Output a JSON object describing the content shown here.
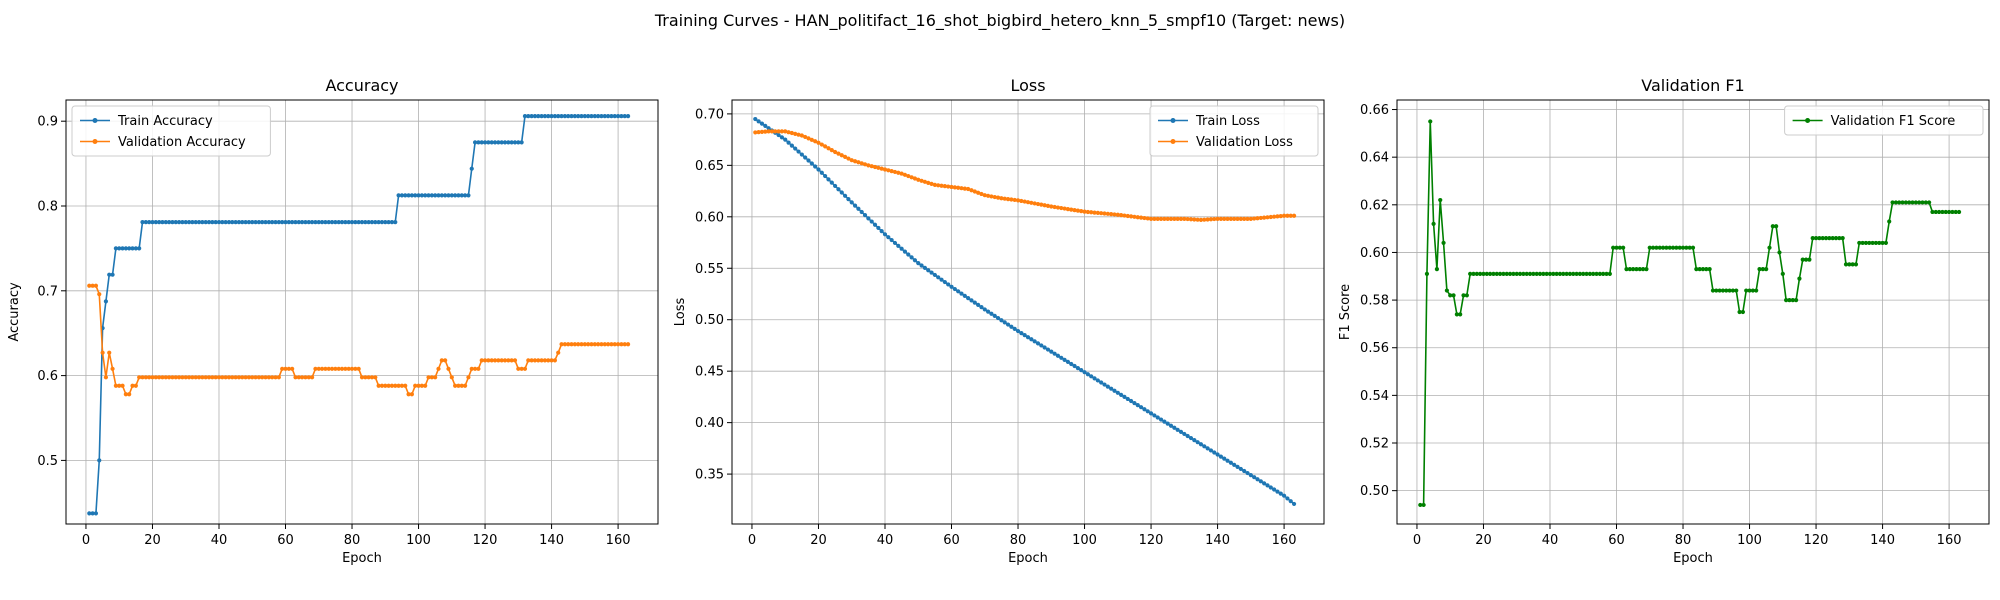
{
  "figure": {
    "title": "Training Curves - HAN_politifact_16_shot_bigbird_hetero_knn_5_smpf10 (Target: news)"
  },
  "colors": {
    "blue": "#1f77b4",
    "orange": "#ff7f0e",
    "green": "#008000",
    "grid": "#b0b0b0"
  },
  "chart_data": [
    {
      "type": "line",
      "title": "Accuracy",
      "xlabel": "Epoch",
      "ylabel": "Accuracy",
      "xlim": [
        -6,
        172
      ],
      "ylim": [
        0.425,
        0.925
      ],
      "xticks": [
        0,
        20,
        40,
        60,
        80,
        100,
        120,
        140,
        160
      ],
      "yticks": [
        0.5,
        0.6,
        0.7,
        0.8,
        0.9
      ],
      "ytick_labels": [
        "0.5",
        "0.6",
        "0.7",
        "0.8",
        "0.9"
      ],
      "grid": true,
      "legend": "upper-left",
      "series": [
        {
          "name": "Train Accuracy",
          "color_key": "blue",
          "keypoints": [
            [
              1,
              0.4375
            ],
            [
              3,
              0.4375
            ],
            [
              4,
              0.5
            ],
            [
              5,
              0.656
            ],
            [
              6,
              0.6875
            ],
            [
              7,
              0.719
            ],
            [
              8,
              0.719
            ],
            [
              9,
              0.75
            ],
            [
              16,
              0.75
            ],
            [
              17,
              0.781
            ],
            [
              93,
              0.781
            ],
            [
              94,
              0.8125
            ],
            [
              115,
              0.8125
            ],
            [
              116,
              0.844
            ],
            [
              117,
              0.875
            ],
            [
              131,
              0.875
            ],
            [
              132,
              0.906
            ],
            [
              163,
              0.906
            ]
          ]
        },
        {
          "name": "Validation Accuracy",
          "color_key": "orange",
          "keypoints": [
            [
              1,
              0.706
            ],
            [
              3,
              0.706
            ],
            [
              4,
              0.696
            ],
            [
              5,
              0.627
            ],
            [
              6,
              0.598
            ],
            [
              7,
              0.627
            ],
            [
              8,
              0.608
            ],
            [
              9,
              0.588
            ],
            [
              11,
              0.588
            ],
            [
              12,
              0.578
            ],
            [
              13,
              0.578
            ],
            [
              14,
              0.588
            ],
            [
              15,
              0.588
            ],
            [
              16,
              0.598
            ],
            [
              58,
              0.598
            ],
            [
              59,
              0.608
            ],
            [
              62,
              0.608
            ],
            [
              63,
              0.598
            ],
            [
              68,
              0.598
            ],
            [
              69,
              0.608
            ],
            [
              82,
              0.608
            ],
            [
              83,
              0.598
            ],
            [
              87,
              0.598
            ],
            [
              88,
              0.588
            ],
            [
              96,
              0.588
            ],
            [
              97,
              0.578
            ],
            [
              98,
              0.578
            ],
            [
              99,
              0.588
            ],
            [
              102,
              0.588
            ],
            [
              103,
              0.598
            ],
            [
              105,
              0.598
            ],
            [
              106,
              0.608
            ],
            [
              107,
              0.618
            ],
            [
              108,
              0.618
            ],
            [
              109,
              0.608
            ],
            [
              110,
              0.598
            ],
            [
              111,
              0.588
            ],
            [
              114,
              0.588
            ],
            [
              115,
              0.598
            ],
            [
              116,
              0.608
            ],
            [
              118,
              0.608
            ],
            [
              119,
              0.618
            ],
            [
              129,
              0.618
            ],
            [
              130,
              0.608
            ],
            [
              132,
              0.608
            ],
            [
              133,
              0.618
            ],
            [
              141,
              0.618
            ],
            [
              142,
              0.627
            ],
            [
              143,
              0.637
            ],
            [
              163,
              0.637
            ]
          ]
        }
      ]
    },
    {
      "type": "line",
      "title": "Loss",
      "xlabel": "Epoch",
      "ylabel": "Loss",
      "xlim": [
        -6,
        172
      ],
      "ylim": [
        0.3015,
        0.7135
      ],
      "xticks": [
        0,
        20,
        40,
        60,
        80,
        100,
        120,
        140,
        160
      ],
      "yticks": [
        0.35,
        0.4,
        0.45,
        0.5,
        0.55,
        0.6,
        0.65,
        0.7
      ],
      "ytick_labels": [
        "0.35",
        "0.40",
        "0.45",
        "0.50",
        "0.55",
        "0.60",
        "0.65",
        "0.70"
      ],
      "grid": true,
      "legend": "upper-right",
      "series": [
        {
          "name": "Train Loss",
          "color_key": "blue",
          "keypoints": [
            [
              1,
              0.695
            ],
            [
              10,
              0.675
            ],
            [
              20,
              0.646
            ],
            [
              30,
              0.614
            ],
            [
              40,
              0.583
            ],
            [
              50,
              0.555
            ],
            [
              60,
              0.532
            ],
            [
              70,
              0.51
            ],
            [
              80,
              0.489
            ],
            [
              90,
              0.469
            ],
            [
              100,
              0.449
            ],
            [
              110,
              0.429
            ],
            [
              120,
              0.409
            ],
            [
              130,
              0.389
            ],
            [
              140,
              0.369
            ],
            [
              150,
              0.349
            ],
            [
              160,
              0.329
            ],
            [
              163,
              0.321
            ]
          ]
        },
        {
          "name": "Validation Loss",
          "color_key": "orange",
          "keypoints": [
            [
              1,
              0.682
            ],
            [
              5,
              0.683
            ],
            [
              10,
              0.683
            ],
            [
              15,
              0.679
            ],
            [
              20,
              0.672
            ],
            [
              25,
              0.663
            ],
            [
              30,
              0.655
            ],
            [
              35,
              0.65
            ],
            [
              40,
              0.646
            ],
            [
              45,
              0.642
            ],
            [
              50,
              0.636
            ],
            [
              55,
              0.631
            ],
            [
              60,
              0.629
            ],
            [
              65,
              0.627
            ],
            [
              70,
              0.621
            ],
            [
              75,
              0.618
            ],
            [
              80,
              0.616
            ],
            [
              90,
              0.61
            ],
            [
              100,
              0.605
            ],
            [
              110,
              0.602
            ],
            [
              120,
              0.598
            ],
            [
              130,
              0.598
            ],
            [
              135,
              0.597
            ],
            [
              140,
              0.598
            ],
            [
              150,
              0.598
            ],
            [
              160,
              0.601
            ],
            [
              163,
              0.601
            ]
          ]
        }
      ]
    },
    {
      "type": "line",
      "title": "Validation F1",
      "xlabel": "Epoch",
      "ylabel": "F1 Score",
      "xlim": [
        -6,
        172
      ],
      "ylim": [
        0.486,
        0.664
      ],
      "xticks": [
        0,
        20,
        40,
        60,
        80,
        100,
        120,
        140,
        160
      ],
      "yticks": [
        0.5,
        0.52,
        0.54,
        0.56,
        0.58,
        0.6,
        0.62,
        0.64,
        0.66
      ],
      "ytick_labels": [
        "0.50",
        "0.52",
        "0.54",
        "0.56",
        "0.58",
        "0.60",
        "0.62",
        "0.64",
        "0.66"
      ],
      "grid": true,
      "legend": "upper-right",
      "series": [
        {
          "name": "Validation F1 Score",
          "color_key": "green",
          "keypoints": [
            [
              1,
              0.494
            ],
            [
              2,
              0.494
            ],
            [
              3,
              0.591
            ],
            [
              4,
              0.655
            ],
            [
              5,
              0.612
            ],
            [
              6,
              0.593
            ],
            [
              7,
              0.622
            ],
            [
              8,
              0.604
            ],
            [
              9,
              0.584
            ],
            [
              10,
              0.582
            ],
            [
              11,
              0.582
            ],
            [
              12,
              0.574
            ],
            [
              13,
              0.574
            ],
            [
              14,
              0.582
            ],
            [
              15,
              0.582
            ],
            [
              16,
              0.591
            ],
            [
              58,
              0.591
            ],
            [
              59,
              0.602
            ],
            [
              62,
              0.602
            ],
            [
              63,
              0.593
            ],
            [
              69,
              0.593
            ],
            [
              70,
              0.602
            ],
            [
              83,
              0.602
            ],
            [
              84,
              0.593
            ],
            [
              88,
              0.593
            ],
            [
              89,
              0.584
            ],
            [
              96,
              0.584
            ],
            [
              97,
              0.575
            ],
            [
              98,
              0.575
            ],
            [
              99,
              0.584
            ],
            [
              102,
              0.584
            ],
            [
              103,
              0.593
            ],
            [
              105,
              0.593
            ],
            [
              106,
              0.602
            ],
            [
              107,
              0.611
            ],
            [
              108,
              0.611
            ],
            [
              109,
              0.6
            ],
            [
              110,
              0.591
            ],
            [
              111,
              0.58
            ],
            [
              114,
              0.58
            ],
            [
              115,
              0.589
            ],
            [
              116,
              0.597
            ],
            [
              118,
              0.597
            ],
            [
              119,
              0.606
            ],
            [
              128,
              0.606
            ],
            [
              129,
              0.595
            ],
            [
              132,
              0.595
            ],
            [
              133,
              0.604
            ],
            [
              141,
              0.604
            ],
            [
              142,
              0.613
            ],
            [
              143,
              0.621
            ],
            [
              154,
              0.621
            ],
            [
              155,
              0.617
            ],
            [
              163,
              0.617
            ]
          ]
        }
      ]
    }
  ]
}
